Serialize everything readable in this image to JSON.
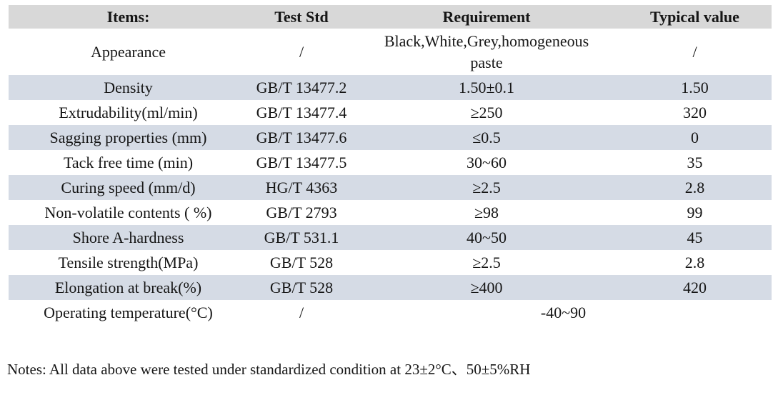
{
  "table": {
    "headers": {
      "items": "Items:",
      "test_std": "Test Std",
      "requirement": "Requirement",
      "typical": "Typical value"
    },
    "rows": [
      {
        "item": "Appearance",
        "test_std": "/",
        "requirement": "Black,White,Grey,homogeneous paste",
        "typical": "/"
      },
      {
        "item": "Density",
        "test_std": "GB/T 13477.2",
        "requirement": "1.50±0.1",
        "typical": "1.50"
      },
      {
        "item": "Extrudability(ml/min)",
        "test_std": "GB/T 13477.4",
        "requirement": "≥250",
        "typical": "320"
      },
      {
        "item": "Sagging properties (mm)",
        "test_std": "GB/T 13477.6",
        "requirement": "≤0.5",
        "typical": "0"
      },
      {
        "item": "Tack free time (min)",
        "test_std": "GB/T 13477.5",
        "requirement": "30~60",
        "typical": "35"
      },
      {
        "item": "Curing speed (mm/d)",
        "test_std": "HG/T 4363",
        "requirement": "≥2.5",
        "typical": "2.8"
      },
      {
        "item": "Non-volatile contents ( %)",
        "test_std": "GB/T 2793",
        "requirement": "≥98",
        "typical": "99"
      },
      {
        "item": "Shore A-hardness",
        "test_std": "GB/T 531.1",
        "requirement": "40~50",
        "typical": "45"
      },
      {
        "item": "Tensile strength(MPa)",
        "test_std": "GB/T 528",
        "requirement": "≥2.5",
        "typical": "2.8"
      },
      {
        "item": "Elongation at break(%)",
        "test_std": "GB/T 528",
        "requirement": "≥400",
        "typical": "420"
      },
      {
        "item": "Operating temperature(°C)",
        "test_std": "/",
        "requirement": "-40~90"
      }
    ]
  },
  "notes": "Notes: All data above were tested under standardized condition at 23±2°C、50±5%RH",
  "colors": {
    "header_bg": "#d8d8d8",
    "stripe_bg": "#d5dbe5"
  }
}
